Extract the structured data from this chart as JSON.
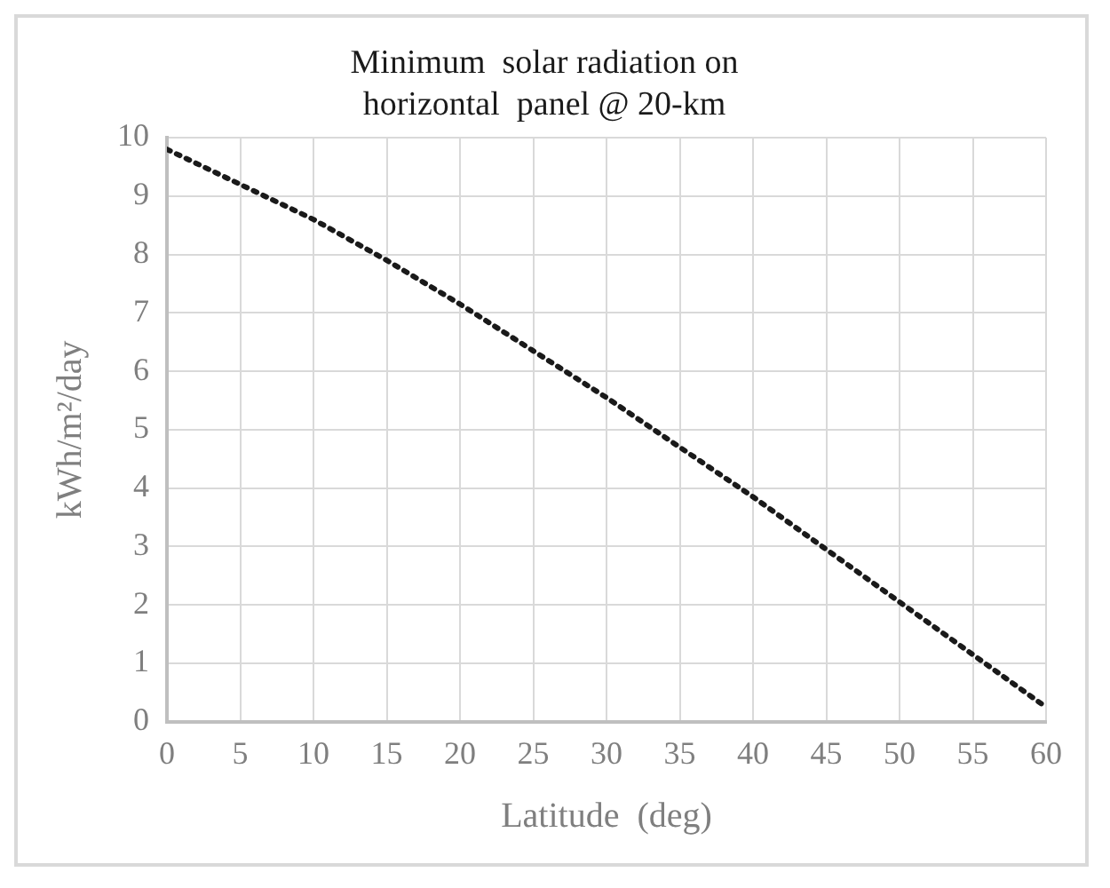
{
  "chart_data": {
    "type": "line",
    "title": [
      "Minimum  solar radiation on",
      "horizontal  panel @ 20-km"
    ],
    "xlabel": "Latitude  (deg)",
    "ylabel": "kWh/m²/day",
    "x": [
      0,
      5,
      10,
      15,
      20,
      25,
      30,
      35,
      40,
      45,
      50,
      55,
      60
    ],
    "series": [
      {
        "color": "#1a1a1a",
        "values": [
          9.8,
          9.2,
          8.6,
          7.9,
          7.15,
          6.35,
          5.55,
          4.7,
          3.85,
          2.95,
          2.05,
          1.15,
          0.25
        ]
      }
    ],
    "xlim": [
      0,
      60
    ],
    "xticks": [
      0,
      5,
      10,
      15,
      20,
      25,
      30,
      35,
      40,
      45,
      50,
      55,
      60
    ],
    "ylim": [
      0,
      10
    ],
    "yticks": [
      0,
      1,
      2,
      3,
      4,
      5,
      6,
      7,
      8,
      9,
      10
    ],
    "grid": true,
    "legend": false,
    "marker": "none",
    "line_style": "dotted"
  }
}
